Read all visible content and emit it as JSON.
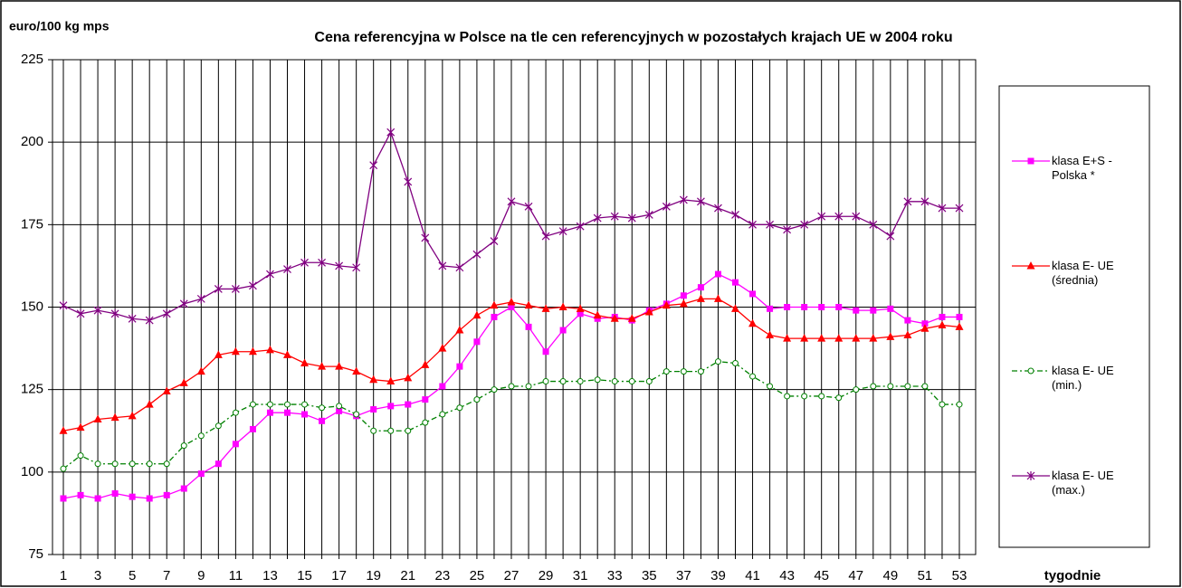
{
  "chart_data": {
    "type": "line",
    "title": "Cena referencyjna w Polsce na tle cen referencyjnych w pozostałych krajach UE w 2004 roku",
    "y_label": "euro/100 kg mps",
    "x_label": "tygodnie",
    "categories": [
      1,
      null,
      3,
      null,
      5,
      null,
      7,
      null,
      9,
      null,
      11,
      null,
      13,
      null,
      15,
      null,
      17,
      null,
      19,
      null,
      21,
      null,
      23,
      null,
      25,
      null,
      27,
      null,
      29,
      null,
      31,
      null,
      33,
      null,
      35,
      null,
      37,
      null,
      39,
      null,
      41,
      null,
      43,
      null,
      45,
      null,
      47,
      null,
      49,
      null,
      51,
      null,
      53
    ],
    "ylim": [
      75,
      225
    ],
    "yticks": [
      75,
      100,
      125,
      150,
      175,
      200,
      225
    ],
    "grid": true,
    "legend": "right",
    "series": [
      {
        "name": "klasa E+S - Polska *",
        "color": "#ff00ff",
        "marker": "square",
        "values": [
          92,
          93,
          92,
          93.5,
          92.5,
          92,
          93,
          95,
          99.5,
          102.5,
          108.5,
          113,
          118,
          118,
          117.5,
          115.5,
          118.5,
          117,
          119,
          120,
          120.5,
          122,
          126,
          132,
          139.5,
          147,
          150,
          144,
          136.5,
          143,
          148,
          146.5,
          147,
          146,
          149,
          151,
          153.5,
          156,
          160,
          157.5,
          154,
          149.5,
          150,
          150,
          150,
          150,
          149,
          149,
          149.5,
          146,
          145,
          147,
          147
        ]
      },
      {
        "name": "klasa E- UE (średnia)",
        "color": "#ff0000",
        "marker": "triangle",
        "values": [
          112.5,
          113.5,
          116,
          116.5,
          117,
          120.5,
          124.5,
          127,
          130.5,
          135.5,
          136.5,
          136.5,
          137,
          135.5,
          133,
          132,
          132,
          130.5,
          128,
          127.5,
          128.5,
          132.5,
          137.5,
          143,
          147.5,
          150.5,
          151.5,
          150.5,
          149.5,
          150,
          149.5,
          147.5,
          146.5,
          146.5,
          148.5,
          150.5,
          151,
          152.5,
          152.5,
          149.5,
          145,
          141.5,
          140.5,
          140.5,
          140.5,
          140.5,
          140.5,
          140.5,
          141,
          141.5,
          143.5,
          144.5,
          144
        ]
      },
      {
        "name": "klasa E- UE (min.)",
        "color": "#008000",
        "marker": "circle",
        "dashed": true,
        "values": [
          101,
          105,
          102.5,
          102.5,
          102.5,
          102.5,
          102.5,
          108,
          111,
          114,
          118,
          120.5,
          120.5,
          120.5,
          120.5,
          119.5,
          120,
          117.5,
          112.5,
          112.5,
          112.5,
          115,
          117.5,
          119.5,
          122,
          125,
          126,
          126,
          127.5,
          127.5,
          127.5,
          128,
          127.5,
          127.5,
          127.5,
          130.5,
          130.5,
          130.5,
          133.5,
          133,
          129,
          126,
          123,
          123,
          123,
          122.5,
          125,
          126,
          126,
          126,
          126,
          120.5,
          120.5
        ]
      },
      {
        "name": "klasa E- UE (max.)",
        "color": "#800080",
        "marker": "star",
        "values": [
          150.5,
          148,
          149,
          148,
          146.5,
          146,
          148,
          151,
          152.5,
          155.5,
          155.5,
          156.5,
          160,
          161.5,
          163.5,
          163.5,
          162.5,
          162,
          193,
          203,
          188,
          171,
          162.5,
          162,
          166,
          170,
          182,
          180.5,
          171.5,
          173,
          174.5,
          177,
          177.5,
          177,
          178,
          180.5,
          182.5,
          182,
          180,
          178,
          175,
          175,
          173.5,
          175,
          177.5,
          177.5,
          177.5,
          175,
          171.5,
          182,
          182,
          180,
          180
        ]
      }
    ]
  }
}
